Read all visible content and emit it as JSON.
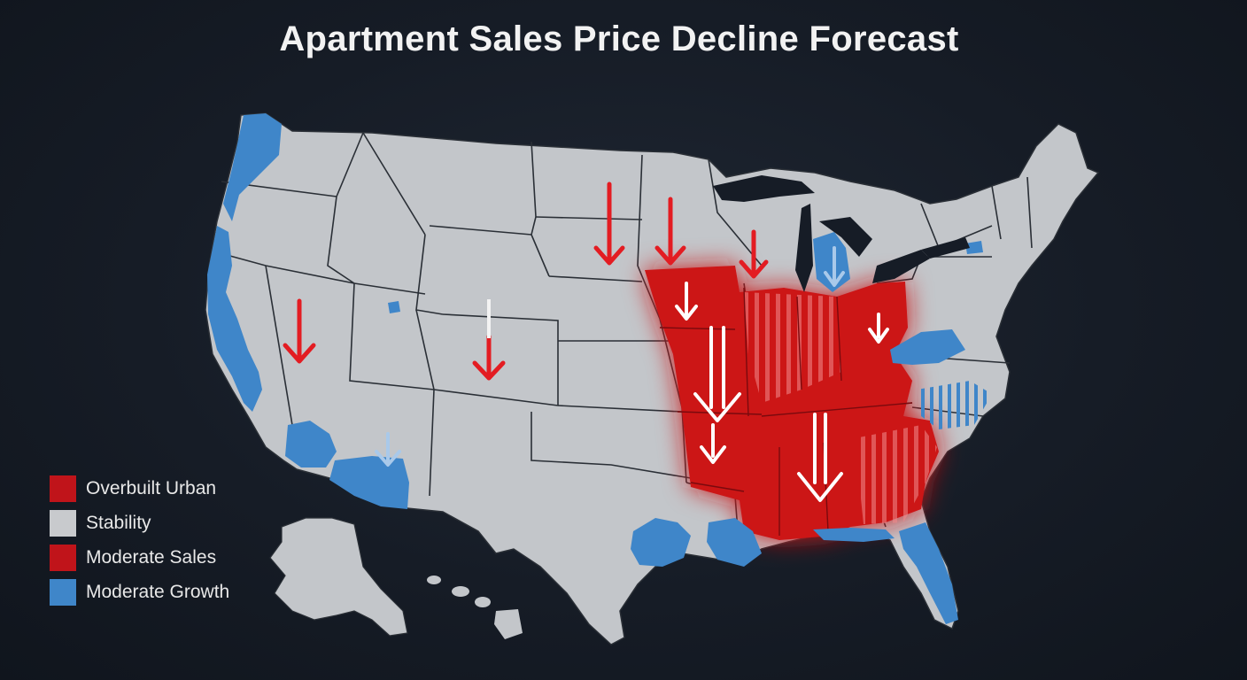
{
  "title": "Apartment Sales Price Decline Forecast",
  "colors": {
    "background": "#161c26",
    "land_neutral": "#c3c6ca",
    "state_border": "#2a2f36",
    "decline_red": "#cc1218",
    "growth_blue": "#3f86c9",
    "water": "#161c26"
  },
  "legend": {
    "items": [
      {
        "label": "Overbuilt Urban",
        "color": "#c0141a"
      },
      {
        "label": "Stability",
        "color": "#c8cacd"
      },
      {
        "label": "Moderate Sales",
        "color": "#c0141a"
      },
      {
        "label": "Moderate Growth",
        "color": "#3f86c9"
      }
    ]
  },
  "map": {
    "region": "United States",
    "insets": [
      "Alaska",
      "Hawaii"
    ],
    "decline_region": "Midwest and Southeast",
    "growth_areas": [
      "Pacific Coast",
      "Southern Arizona",
      "Gulf Coast",
      "Florida",
      "Virginia / North Carolina",
      "Michigan"
    ],
    "marker_icons": [
      "down-arrow-icon"
    ]
  }
}
